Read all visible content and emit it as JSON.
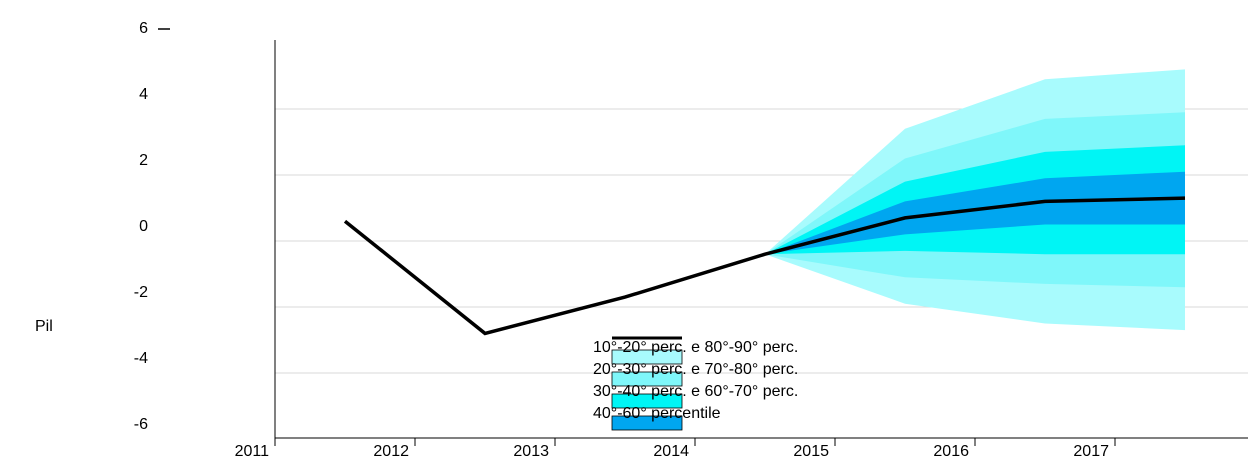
{
  "chart_data": {
    "type": "area",
    "ylabel": "Pil",
    "ylim": [
      -6,
      6
    ],
    "yticks": [
      {
        "value": -6,
        "label": "-6"
      },
      {
        "value": -4,
        "label": "-4"
      },
      {
        "value": -2,
        "label": "-2"
      },
      {
        "value": 0,
        "label": "0"
      },
      {
        "value": 2,
        "label": "2"
      },
      {
        "value": 4,
        "label": "4"
      },
      {
        "value": 6,
        "label": "6"
      }
    ],
    "xticks": [
      "2011",
      "2012",
      "2013",
      "2014",
      "2015",
      "2016",
      "2017"
    ],
    "grid": true,
    "line": {
      "x": [
        2011.5,
        2012.5,
        2013.5,
        2014.5,
        2015.5,
        2016.5,
        2017.5
      ],
      "y": [
        0.6,
        -2.8,
        -1.7,
        -0.4,
        0.7,
        1.2,
        1.3
      ]
    },
    "fan": {
      "x": [
        2014.5,
        2015.5,
        2016.5,
        2017.5
      ],
      "bands": [
        {
          "lower": [
            -0.4,
            -1.9,
            -2.5,
            -2.7
          ],
          "upper": [
            -0.4,
            3.4,
            4.9,
            5.2
          ],
          "color": "#a8fbfd"
        },
        {
          "lower": [
            -0.4,
            -1.1,
            -1.3,
            -1.4
          ],
          "upper": [
            -0.4,
            2.5,
            3.7,
            3.9
          ],
          "color": "#7ff7fa"
        },
        {
          "lower": [
            -0.4,
            -0.3,
            -0.4,
            -0.4
          ],
          "upper": [
            -0.4,
            1.8,
            2.7,
            2.9
          ],
          "color": "#00f5f5"
        },
        {
          "lower": [
            -0.4,
            0.2,
            0.5,
            0.5
          ],
          "upper": [
            -0.4,
            1.2,
            1.9,
            2.1
          ],
          "color": "#00a6f0"
        }
      ]
    },
    "legend": {
      "placement": "bottom-center",
      "entries": [
        {
          "label": "10°-20° perc. e 80°-90° perc.",
          "color": "#a8fbfd"
        },
        {
          "label": "20°-30° perc. e 70°-80° perc.",
          "color": "#7ff7fa"
        },
        {
          "label": "30°-40° perc. e 60°-70° perc.",
          "color": "#00f5f5"
        },
        {
          "label": "40°-60° percentile",
          "color": "#00a6f0"
        }
      ]
    }
  }
}
